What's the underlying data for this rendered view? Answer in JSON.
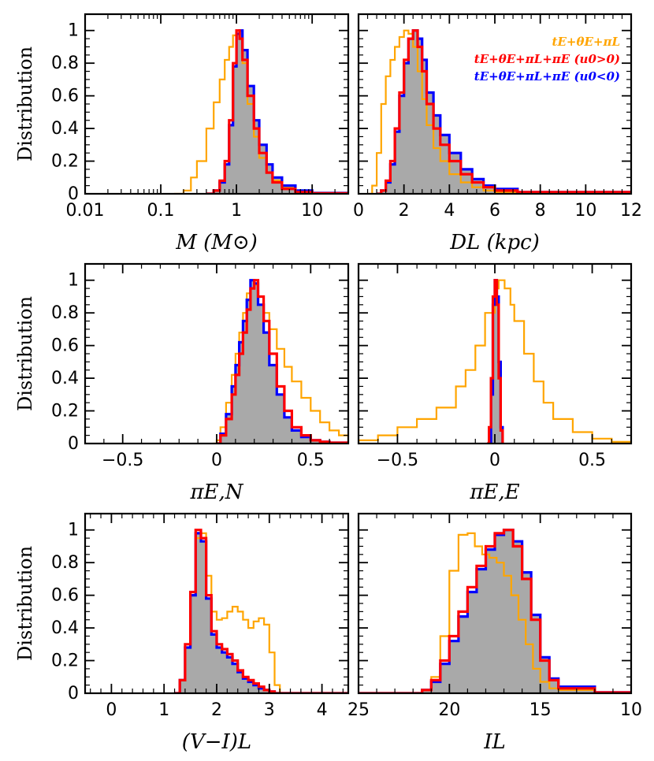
{
  "chart_data": [
    {
      "type": "histogram",
      "ylabel": "Distribution",
      "xlabel": "M (M⊙)",
      "xscale": "log",
      "xlim": [
        0.01,
        30
      ],
      "ylim": [
        0,
        1.1
      ],
      "xtick_labels": [
        "0.01",
        "0.1",
        "1",
        "10"
      ],
      "ytick_labels": [
        "0",
        "0.2",
        "0.4",
        "0.6",
        "0.8",
        "1"
      ],
      "grid": false,
      "series": [
        {
          "name": "tE+θE+πL",
          "color": "#FFA500",
          "x": [
            0.15,
            0.2,
            0.25,
            0.3,
            0.4,
            0.5,
            0.6,
            0.7,
            0.8,
            0.9,
            1.0,
            1.1,
            1.2,
            1.4,
            1.7,
            2.0,
            2.5,
            3.0,
            4.0,
            6.0,
            10.0,
            30.0
          ],
          "y": [
            0,
            0.02,
            0.1,
            0.2,
            0.4,
            0.56,
            0.7,
            0.82,
            0.9,
            0.97,
            1.0,
            0.95,
            0.8,
            0.55,
            0.35,
            0.22,
            0.13,
            0.08,
            0.04,
            0.02,
            0.005,
            0
          ]
        },
        {
          "name": "tE+θE+πL+πE (u0>0)",
          "color": "#FF0000",
          "x": [
            0.4,
            0.5,
            0.6,
            0.7,
            0.8,
            0.9,
            1.0,
            1.1,
            1.2,
            1.4,
            1.7,
            2.0,
            2.5,
            3.0,
            4.0,
            6.0,
            10.0,
            30.0
          ],
          "y": [
            0,
            0.02,
            0.08,
            0.2,
            0.45,
            0.8,
            1.0,
            0.95,
            0.82,
            0.6,
            0.4,
            0.25,
            0.13,
            0.07,
            0.03,
            0.01,
            0.003,
            0
          ]
        },
        {
          "name": "tE+θE+πL+πE (u0<0)",
          "color": "#0000FF",
          "x": [
            0.4,
            0.5,
            0.6,
            0.7,
            0.8,
            0.9,
            1.0,
            1.1,
            1.2,
            1.4,
            1.7,
            2.0,
            2.5,
            3.0,
            4.0,
            6.0,
            10.0,
            30.0
          ],
          "y": [
            0,
            0.02,
            0.07,
            0.18,
            0.42,
            0.78,
            0.98,
            1.0,
            0.88,
            0.66,
            0.45,
            0.3,
            0.18,
            0.1,
            0.05,
            0.02,
            0.005,
            0
          ]
        }
      ]
    },
    {
      "type": "histogram",
      "xlabel": "DL (kpc)",
      "xlim": [
        0,
        12
      ],
      "ylim": [
        0,
        1.1
      ],
      "xtick_labels": [
        "0",
        "2",
        "4",
        "6",
        "8",
        "10",
        "12"
      ],
      "ytick_labels": [
        "0",
        "0.2",
        "0.4",
        "0.6",
        "0.8",
        "1"
      ],
      "legend": {
        "position": "top-right",
        "entries": [
          {
            "text": "tE+θE+πL",
            "color": "#FFA500"
          },
          {
            "text": "tE+θE+πL+πE (u0>0)",
            "color": "#FF0000"
          },
          {
            "text": "tE+θE+πL+πE (u0<0)",
            "color": "#0000FF"
          }
        ]
      },
      "series": [
        {
          "name": "tE+θE+πL",
          "color": "#FFA500",
          "x": [
            0.4,
            0.6,
            0.8,
            1.0,
            1.2,
            1.4,
            1.6,
            1.8,
            2.0,
            2.2,
            2.4,
            2.6,
            2.8,
            3.0,
            3.3,
            3.6,
            4.0,
            4.5,
            5.0,
            5.5,
            6.0,
            7.0,
            12.0
          ],
          "y": [
            0,
            0.05,
            0.25,
            0.55,
            0.72,
            0.82,
            0.9,
            0.96,
            1.0,
            0.98,
            0.9,
            0.75,
            0.58,
            0.42,
            0.28,
            0.2,
            0.12,
            0.07,
            0.04,
            0.02,
            0.01,
            0.005,
            0
          ]
        },
        {
          "name": "tE+θE+πL+πE (u0>0)",
          "color": "#FF0000",
          "x": [
            0.8,
            1.0,
            1.2,
            1.4,
            1.6,
            1.8,
            2.0,
            2.2,
            2.4,
            2.6,
            2.8,
            3.0,
            3.3,
            3.6,
            4.0,
            4.5,
            5.0,
            5.5,
            6.0,
            7.0,
            12.0
          ],
          "y": [
            0,
            0.02,
            0.08,
            0.2,
            0.4,
            0.62,
            0.82,
            0.95,
            1.0,
            0.9,
            0.75,
            0.55,
            0.4,
            0.3,
            0.2,
            0.12,
            0.07,
            0.04,
            0.02,
            0.01,
            0
          ]
        },
        {
          "name": "tE+θE+πL+πE (u0<0)",
          "color": "#0000FF",
          "x": [
            0.8,
            1.0,
            1.2,
            1.4,
            1.6,
            1.8,
            2.0,
            2.2,
            2.4,
            2.6,
            2.8,
            3.0,
            3.3,
            3.6,
            4.0,
            4.5,
            5.0,
            5.5,
            6.0,
            7.0,
            12.0
          ],
          "y": [
            0,
            0.02,
            0.07,
            0.18,
            0.38,
            0.6,
            0.8,
            0.95,
            1.0,
            0.95,
            0.82,
            0.62,
            0.48,
            0.36,
            0.25,
            0.15,
            0.09,
            0.05,
            0.03,
            0.01,
            0
          ]
        }
      ]
    },
    {
      "type": "histogram",
      "ylabel": "Distribution",
      "xlabel": "πE,N",
      "xlim": [
        -0.7,
        0.7
      ],
      "ylim": [
        0,
        1.1
      ],
      "xtick_labels": [
        "-0.5",
        "0",
        "0.5"
      ],
      "ytick_labels": [
        "0",
        "0.2",
        "0.4",
        "0.6",
        "0.8",
        "1"
      ],
      "series": [
        {
          "name": "tE+θE+πL",
          "color": "#FFA500",
          "x": [
            -0.02,
            0.0,
            0.02,
            0.05,
            0.08,
            0.1,
            0.12,
            0.14,
            0.16,
            0.18,
            0.2,
            0.22,
            0.25,
            0.28,
            0.32,
            0.36,
            0.4,
            0.45,
            0.5,
            0.55,
            0.6,
            0.65,
            0.7
          ],
          "y": [
            0,
            0.02,
            0.1,
            0.25,
            0.42,
            0.55,
            0.68,
            0.8,
            0.92,
            1.0,
            0.97,
            0.9,
            0.8,
            0.7,
            0.58,
            0.47,
            0.38,
            0.28,
            0.2,
            0.13,
            0.08,
            0.05,
            0.03
          ]
        },
        {
          "name": "tE+θE+πL+πE (u0>0)",
          "color": "#FF0000",
          "x": [
            0.0,
            0.02,
            0.05,
            0.08,
            0.1,
            0.12,
            0.14,
            0.16,
            0.18,
            0.2,
            0.22,
            0.25,
            0.28,
            0.32,
            0.36,
            0.4,
            0.45,
            0.5,
            0.55,
            0.6,
            0.7
          ],
          "y": [
            0,
            0.05,
            0.15,
            0.3,
            0.42,
            0.55,
            0.68,
            0.82,
            0.95,
            1.0,
            0.9,
            0.75,
            0.55,
            0.35,
            0.2,
            0.1,
            0.05,
            0.02,
            0.01,
            0.005,
            0
          ]
        },
        {
          "name": "tE+θE+πL+πE (u0<0)",
          "color": "#0000FF",
          "x": [
            0.0,
            0.02,
            0.05,
            0.08,
            0.1,
            0.12,
            0.14,
            0.16,
            0.18,
            0.2,
            0.22,
            0.25,
            0.28,
            0.32,
            0.36,
            0.4,
            0.45,
            0.5,
            0.55,
            0.6,
            0.7
          ],
          "y": [
            0,
            0.06,
            0.18,
            0.35,
            0.48,
            0.62,
            0.75,
            0.88,
            1.0,
            0.98,
            0.85,
            0.68,
            0.48,
            0.3,
            0.16,
            0.08,
            0.04,
            0.02,
            0.01,
            0.005,
            0
          ]
        }
      ]
    },
    {
      "type": "histogram",
      "xlabel": "πE,E",
      "xlim": [
        -0.7,
        0.7
      ],
      "ylim": [
        0,
        1.1
      ],
      "xtick_labels": [
        "-0.5",
        "0",
        "0.5"
      ],
      "ytick_labels": [
        "0",
        "0.2",
        "0.4",
        "0.6",
        "0.8",
        "1"
      ],
      "series": [
        {
          "name": "tE+θE+πL",
          "color": "#FFA500",
          "x": [
            -0.7,
            -0.6,
            -0.5,
            -0.4,
            -0.3,
            -0.2,
            -0.15,
            -0.1,
            -0.05,
            0.0,
            0.02,
            0.05,
            0.08,
            0.1,
            0.15,
            0.2,
            0.25,
            0.3,
            0.4,
            0.5,
            0.6,
            0.7
          ],
          "y": [
            0.02,
            0.05,
            0.1,
            0.15,
            0.22,
            0.35,
            0.45,
            0.6,
            0.8,
            0.95,
            1.0,
            0.95,
            0.85,
            0.75,
            0.55,
            0.38,
            0.25,
            0.15,
            0.07,
            0.03,
            0.01,
            0.005
          ]
        },
        {
          "name": "tE+θE+πL+πE (u0>0)",
          "color": "#FF0000",
          "x": [
            -0.04,
            -0.03,
            -0.02,
            -0.01,
            0.0,
            0.01,
            0.02,
            0.03,
            0.04
          ],
          "y": [
            0,
            0.1,
            0.4,
            0.9,
            1.0,
            0.85,
            0.4,
            0.08,
            0
          ]
        },
        {
          "name": "tE+θE+πL+πE (u0<0)",
          "color": "#0000FF",
          "x": [
            -0.03,
            -0.02,
            -0.01,
            0.0,
            0.01,
            0.02,
            0.03,
            0.04
          ],
          "y": [
            0,
            0.3,
            0.85,
            1.0,
            0.9,
            0.5,
            0.1,
            0
          ]
        }
      ]
    },
    {
      "type": "histogram",
      "ylabel": "Distribution",
      "xlabel": "(V−I)L",
      "xlim": [
        -0.5,
        4.5
      ],
      "ylim": [
        0,
        1.1
      ],
      "xtick_labels": [
        "0",
        "1",
        "2",
        "3",
        "4"
      ],
      "ytick_labels": [
        "0",
        "0.2",
        "0.4",
        "0.6",
        "0.8",
        "1"
      ],
      "series": [
        {
          "name": "tE+θE+πL",
          "color": "#FFA500",
          "x": [
            1.2,
            1.3,
            1.4,
            1.5,
            1.6,
            1.7,
            1.8,
            1.9,
            2.0,
            2.1,
            2.2,
            2.3,
            2.4,
            2.5,
            2.6,
            2.7,
            2.8,
            2.9,
            3.0,
            3.1,
            3.2,
            4.5
          ],
          "y": [
            0,
            0.08,
            0.3,
            0.6,
            0.95,
            0.98,
            0.72,
            0.5,
            0.45,
            0.46,
            0.5,
            0.53,
            0.5,
            0.45,
            0.4,
            0.44,
            0.46,
            0.42,
            0.25,
            0.05,
            0,
            0
          ]
        },
        {
          "name": "tE+θE+πL+πE (u0>0)",
          "color": "#FF0000",
          "x": [
            1.2,
            1.3,
            1.4,
            1.5,
            1.6,
            1.7,
            1.8,
            1.9,
            2.0,
            2.1,
            2.2,
            2.3,
            2.4,
            2.5,
            2.6,
            2.7,
            2.8,
            2.9,
            3.0,
            3.1,
            4.5
          ],
          "y": [
            0,
            0.08,
            0.3,
            0.62,
            1.0,
            0.95,
            0.6,
            0.38,
            0.3,
            0.27,
            0.24,
            0.2,
            0.14,
            0.1,
            0.08,
            0.06,
            0.04,
            0.02,
            0.01,
            0,
            0
          ]
        },
        {
          "name": "tE+θE+πL+πE (u0<0)",
          "color": "#0000FF",
          "x": [
            1.2,
            1.3,
            1.4,
            1.5,
            1.6,
            1.7,
            1.8,
            1.9,
            2.0,
            2.1,
            2.2,
            2.3,
            2.4,
            2.5,
            2.6,
            2.7,
            2.8,
            2.9,
            3.0,
            3.1,
            4.5
          ],
          "y": [
            0,
            0.08,
            0.28,
            0.6,
            0.98,
            0.93,
            0.58,
            0.36,
            0.28,
            0.25,
            0.22,
            0.18,
            0.13,
            0.09,
            0.07,
            0.05,
            0.03,
            0.02,
            0.01,
            0,
            0
          ]
        }
      ]
    },
    {
      "type": "histogram",
      "xlabel": "IL",
      "xlim": [
        25,
        10
      ],
      "ylim": [
        0,
        1.1
      ],
      "x_reversed": true,
      "xtick_labels": [
        "25",
        "20",
        "15",
        "10"
      ],
      "ytick_labels": [
        "0",
        "0.2",
        "0.4",
        "0.6",
        "0.8",
        "1"
      ],
      "series": [
        {
          "name": "tE+θE+πL",
          "color": "#FFA500",
          "x": [
            25,
            21.5,
            21.0,
            20.5,
            20.0,
            19.5,
            19.0,
            18.6,
            18.2,
            17.8,
            17.4,
            17.0,
            16.6,
            16.2,
            15.8,
            15.4,
            15.0,
            14.5,
            14.0,
            12.0,
            10.0
          ],
          "y": [
            0,
            0.02,
            0.1,
            0.35,
            0.75,
            0.97,
            0.98,
            0.9,
            0.85,
            0.83,
            0.8,
            0.72,
            0.6,
            0.45,
            0.3,
            0.15,
            0.07,
            0.03,
            0.02,
            0.005,
            0
          ]
        },
        {
          "name": "tE+θE+πL+πE (u0>0)",
          "color": "#FF0000",
          "x": [
            25,
            21.5,
            21.0,
            20.5,
            20.0,
            19.5,
            19.0,
            18.5,
            18.0,
            17.5,
            17.0,
            16.5,
            16.0,
            15.5,
            15.0,
            14.5,
            14.0,
            12.0,
            10.0
          ],
          "y": [
            0,
            0.02,
            0.08,
            0.2,
            0.35,
            0.5,
            0.65,
            0.78,
            0.9,
            0.98,
            1.0,
            0.9,
            0.7,
            0.45,
            0.2,
            0.08,
            0.03,
            0.005,
            0
          ]
        },
        {
          "name": "tE+θE+πL+πE (u0<0)",
          "color": "#0000FF",
          "x": [
            25,
            21.5,
            21.0,
            20.5,
            20.0,
            19.5,
            19.0,
            18.5,
            18.0,
            17.5,
            17.0,
            16.5,
            16.0,
            15.5,
            15.0,
            14.5,
            14.0,
            12.0,
            10.0
          ],
          "y": [
            0,
            0.02,
            0.07,
            0.18,
            0.32,
            0.47,
            0.62,
            0.76,
            0.88,
            0.97,
            1.0,
            0.93,
            0.74,
            0.48,
            0.22,
            0.09,
            0.04,
            0.006,
            0
          ]
        }
      ]
    }
  ]
}
